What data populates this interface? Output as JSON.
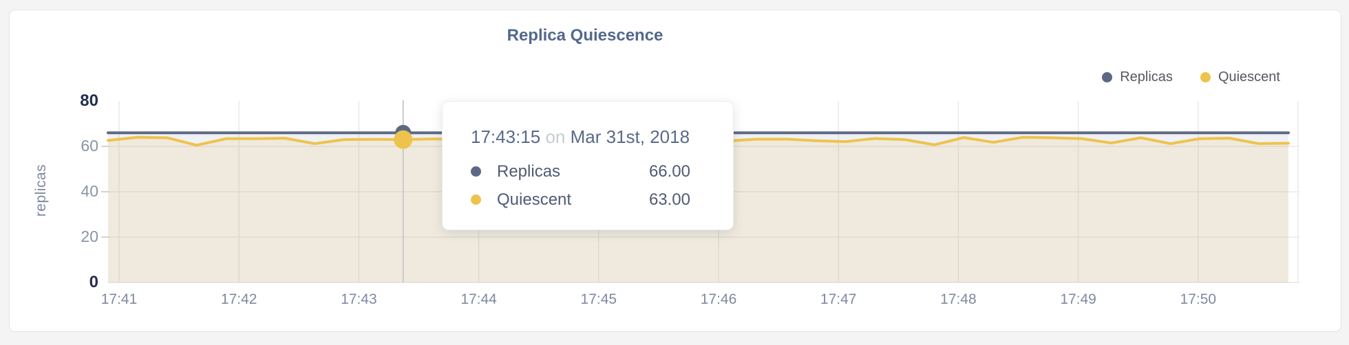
{
  "title": "Replica Quiescence",
  "legend": {
    "items": [
      {
        "label": "Replicas",
        "color": "#5d6884"
      },
      {
        "label": "Quiescent",
        "color": "#eec34d"
      }
    ]
  },
  "tooltip": {
    "time": "17:43:15",
    "conjunction": "on",
    "date": "Mar 31st, 2018",
    "rows": [
      {
        "label": "Replicas",
        "value": "66.00",
        "color": "#5d6884"
      },
      {
        "label": "Quiescent",
        "value": "63.00",
        "color": "#eec34d"
      }
    ]
  },
  "chart_data": {
    "type": "area",
    "title": "Replica Quiescence",
    "xlabel": "",
    "ylabel": "replicas",
    "ylim": [
      0,
      80
    ],
    "y_ticks": [
      0,
      20,
      40,
      60,
      80
    ],
    "y_ticks_emphasized": [
      0,
      80
    ],
    "x_ticks": [
      "17:41",
      "17:42",
      "17:43",
      "17:44",
      "17:45",
      "17:46",
      "17:47",
      "17:48",
      "17:49",
      "17:50"
    ],
    "grid": true,
    "legend_position": "top-right",
    "hover_index": 10,
    "hover_time": "17:43:15",
    "series": [
      {
        "name": "Replicas",
        "color": "#5d6884",
        "fill": "rgba(93,104,132,0.09)",
        "values": [
          66,
          66,
          66,
          66,
          66,
          66,
          66,
          66,
          66,
          66,
          66,
          66,
          66,
          66,
          66,
          66,
          66,
          66,
          66,
          66,
          66,
          66,
          66,
          66,
          66,
          66,
          66,
          66,
          66,
          66,
          66,
          66,
          66,
          66,
          66,
          66,
          66,
          66,
          66,
          66,
          66
        ]
      },
      {
        "name": "Quiescent",
        "color": "#eec34d",
        "fill": "rgba(238,195,77,0.13)",
        "values": [
          62.6,
          64.0,
          63.8,
          60.5,
          63.4,
          63.4,
          63.6,
          61.2,
          63.0,
          63.1,
          63.0,
          63.3,
          63.0,
          63.2,
          63.1,
          63.3,
          62.9,
          63.2,
          63.0,
          63.3,
          63.1,
          62.4,
          63.2,
          63.2,
          62.5,
          62.1,
          63.5,
          63.0,
          60.7,
          63.9,
          61.8,
          64.0,
          63.8,
          63.4,
          61.5,
          63.8,
          61.2,
          63.4,
          63.6,
          61.2,
          61.4
        ]
      }
    ]
  }
}
